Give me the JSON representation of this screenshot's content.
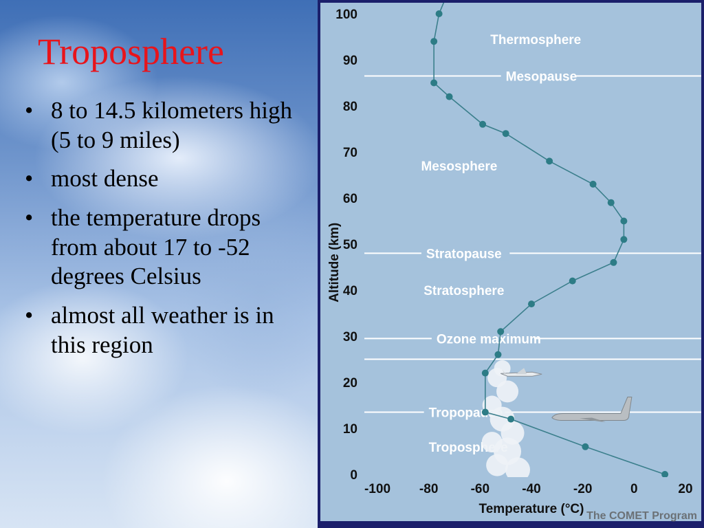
{
  "slide": {
    "title": "Troposphere",
    "bullets": [
      "8 to 14.5 kilometers high (5 to 9 miles)",
      "most dense",
      "the temperature drops from about 17 to -52 degrees Celsius",
      "almost all weather is in this region"
    ],
    "bullet_symbol": "•"
  },
  "chart_data": {
    "type": "line",
    "xlabel": "Temperature (°C)",
    "ylabel": "Altitude (km)",
    "xlim": [
      -100,
      20
    ],
    "ylim": [
      0,
      100
    ],
    "xticks": [
      "-100",
      "-80",
      "-60",
      "-40",
      "-20",
      "0",
      "20"
    ],
    "yticks": [
      "0",
      "10",
      "20",
      "30",
      "40",
      "50",
      "60",
      "70",
      "80",
      "90",
      "100"
    ],
    "credit": "The COMET Program",
    "series": [
      {
        "x": [
          12,
          -19,
          -48,
          -58,
          -58,
          -53,
          -52,
          -40,
          -24,
          -8,
          -4,
          -4,
          -9,
          -16,
          -33,
          -50,
          -59,
          -72,
          -78,
          -78,
          -76,
          -73
        ],
        "y": [
          0,
          6,
          12,
          13.5,
          22,
          26,
          31,
          37,
          42,
          46,
          51,
          55,
          59,
          63,
          68,
          74,
          76,
          82,
          85,
          94,
          100,
          104
        ]
      }
    ],
    "layers": [
      {
        "label": "Thermosphere",
        "altitude": 94.5,
        "temp": -56,
        "line": false
      },
      {
        "label": "Mesopause",
        "altitude": 86.5,
        "temp": -50,
        "line": true
      },
      {
        "label": "Mesosphere",
        "altitude": 67,
        "temp": -83,
        "line": false
      },
      {
        "label": "Stratopause",
        "altitude": 48,
        "temp": -81,
        "line": true
      },
      {
        "label": "Stratosphere",
        "altitude": 40,
        "temp": -82,
        "line": false
      },
      {
        "label": "Ozone maximum",
        "altitude": 29.5,
        "temp": -77,
        "line": true
      },
      {
        "label": "",
        "altitude": 25,
        "temp": 0,
        "line": true
      },
      {
        "label": "Tropopause",
        "altitude": 13.5,
        "temp": -80,
        "line": true
      },
      {
        "label": "Troposphere",
        "altitude": 6,
        "temp": -80,
        "line": false
      }
    ],
    "colors": {
      "background": "#a5c2dc",
      "line": "#3b7f8c",
      "marker": "#2d7c86",
      "label": "#ffffff",
      "frame": "#1b1f6b"
    }
  }
}
